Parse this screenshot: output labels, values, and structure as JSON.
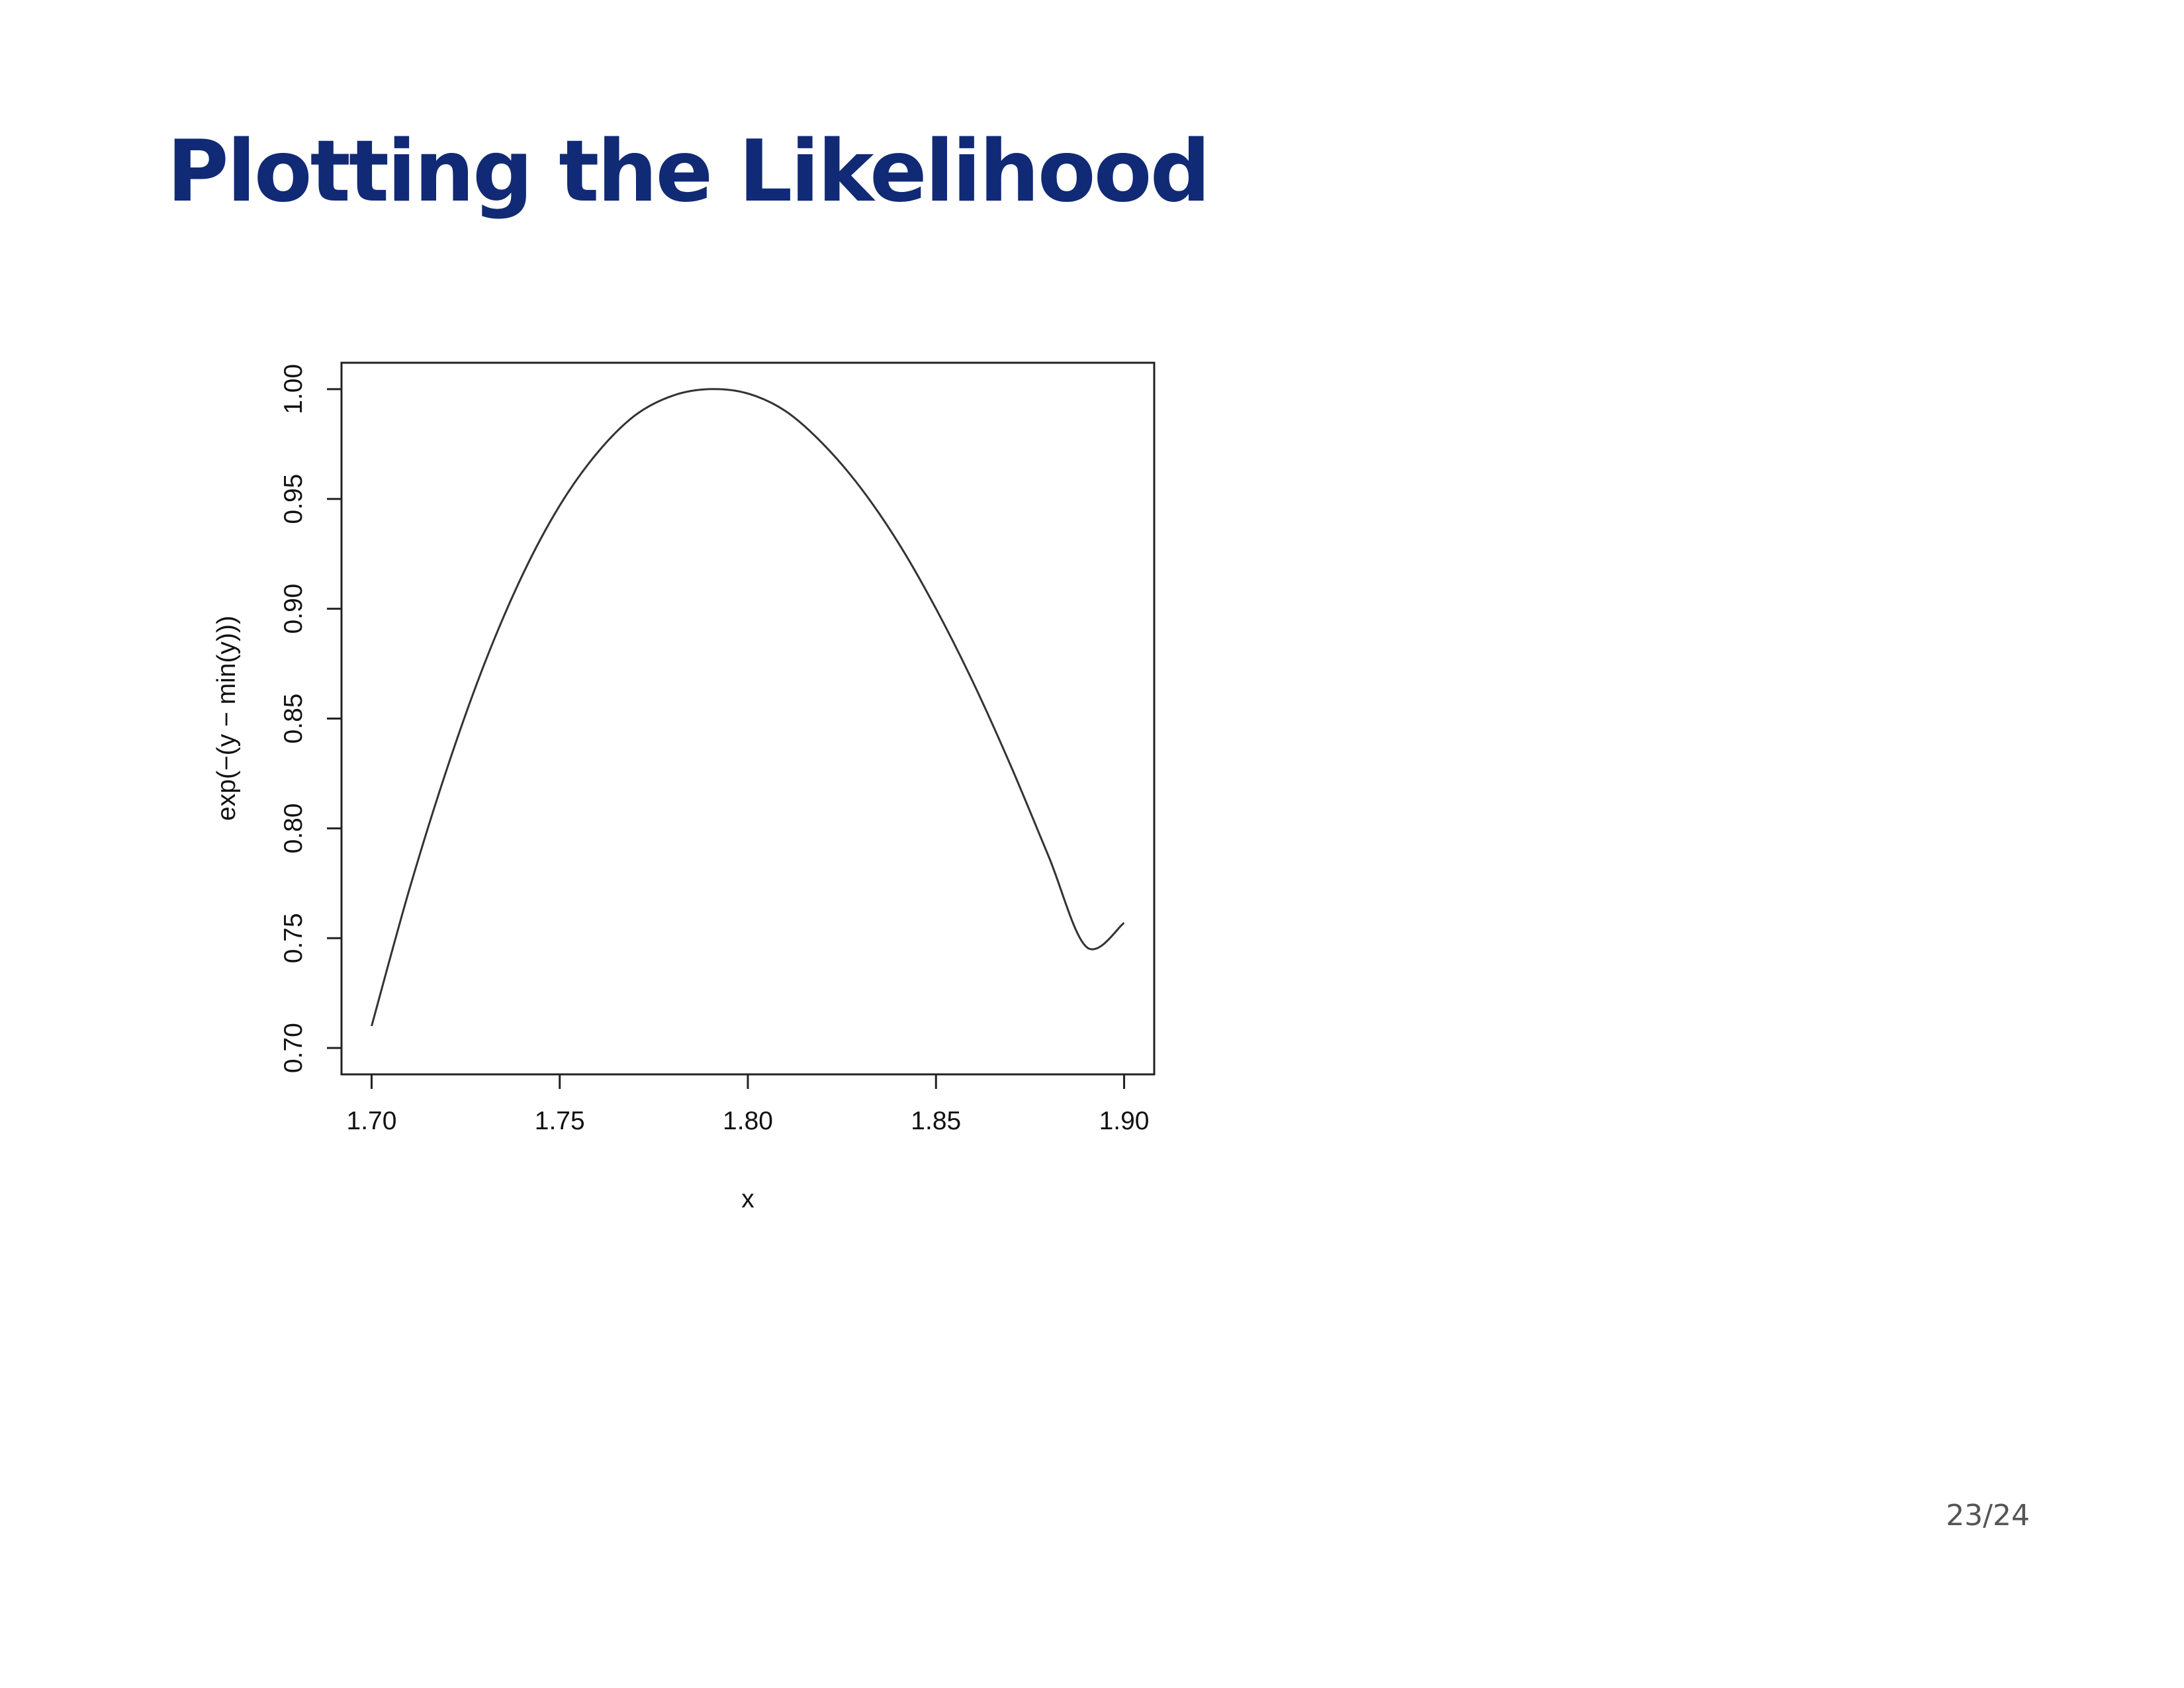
{
  "slide": {
    "title": "Plotting the Likelihood",
    "page_number": "23/24"
  },
  "chart_data": {
    "type": "line",
    "title": "",
    "xlabel": "x",
    "ylabel": "exp(−(y − min(y)))",
    "xlim": [
      1.692,
      1.908
    ],
    "ylim": [
      0.688,
      1.012
    ],
    "x_ticks": [
      1.7,
      1.75,
      1.8,
      1.85,
      1.9
    ],
    "x_tick_labels": [
      "1.70",
      "1.75",
      "1.80",
      "1.85",
      "1.90"
    ],
    "y_ticks": [
      0.7,
      0.75,
      0.8,
      0.85,
      0.9,
      0.95,
      1.0
    ],
    "y_tick_labels": [
      "0.70",
      "0.75",
      "0.80",
      "0.85",
      "0.90",
      "0.95",
      "1.00"
    ],
    "grid": false,
    "legend": "none",
    "line_color": "#333333",
    "series": [
      {
        "x": [
          1.7,
          1.71,
          1.72,
          1.73,
          1.74,
          1.75,
          1.76,
          1.77,
          1.78,
          1.79,
          1.8,
          1.81,
          1.82,
          1.83,
          1.84,
          1.85,
          1.86,
          1.87,
          1.88,
          1.89,
          1.9
        ],
        "y": [
          0.71,
          0.772,
          0.827,
          0.875,
          0.915,
          0.947,
          0.971,
          0.988,
          0.997,
          1.0,
          0.998,
          0.99,
          0.975,
          0.955,
          0.93,
          0.9,
          0.866,
          0.828,
          0.787,
          0.746,
          0.757
        ]
      }
    ]
  }
}
